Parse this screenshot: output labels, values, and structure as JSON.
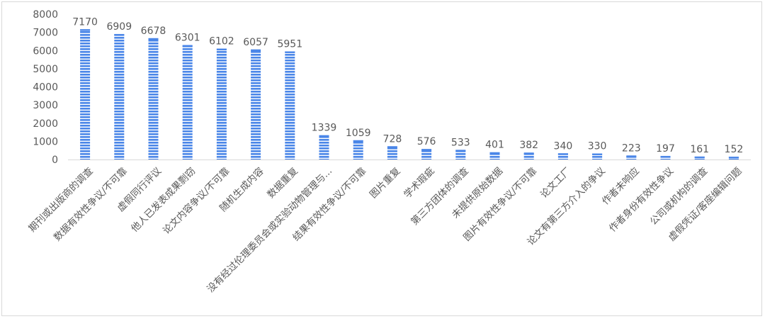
{
  "chart_data": {
    "type": "bar",
    "categories": [
      "期刊或出版商的调查",
      "数据有效性争议/不可靠",
      "虚假同行评议",
      "他人已发表成果剽窃",
      "论文内容争议/不可靠",
      "随机生成内容",
      "数据重复",
      "没有经过伦理委员会或实验动物管理与...",
      "结果有效性争议/不可靠",
      "图片重复",
      "学术瑕疵",
      "第三方团体的调查",
      "未提供原始数据",
      "图片有效性争议/不可靠",
      "论文工厂",
      "论文有第三方介入的争议",
      "作者未响应",
      "作者身份有效性争议",
      "公司或机构的调查",
      "虚假凭证/客座编辑问题"
    ],
    "values": [
      7170,
      6909,
      6678,
      6301,
      6102,
      6057,
      5951,
      1339,
      1059,
      728,
      576,
      533,
      401,
      382,
      340,
      330,
      223,
      197,
      161,
      152
    ],
    "data_labels": [
      "7170",
      "6909",
      "6678",
      "6301",
      "6102",
      "6057",
      "5951",
      "1339",
      "1059",
      "728",
      "576",
      "533",
      "401",
      "382",
      "340",
      "330",
      "223",
      "197",
      "161",
      "152"
    ],
    "yticks": [
      "0",
      "1000",
      "2000",
      "3000",
      "4000",
      "5000",
      "6000",
      "7000",
      "8000"
    ],
    "ylim": [
      0,
      8000
    ],
    "grid": false,
    "legend": "none",
    "bar_color": "#4a86e8",
    "stripe_color": "#ffffff",
    "title": "",
    "xlabel": "",
    "ylabel": ""
  }
}
